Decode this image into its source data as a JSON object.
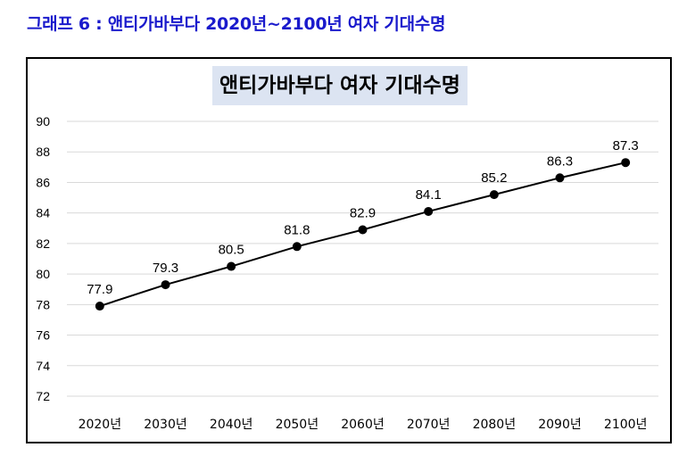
{
  "caption": "그래프 6 : 앤티가바부다 2020년~2100년 여자 기대수명",
  "chart_data": {
    "type": "line",
    "title": "앤티가바부다 여자 기대수명",
    "xlabel": "",
    "ylabel": "",
    "categories": [
      "2020년",
      "2030년",
      "2040년",
      "2050년",
      "2060년",
      "2070년",
      "2080년",
      "2090년",
      "2100년"
    ],
    "series": [
      {
        "values": [
          77.9,
          79.3,
          80.5,
          81.8,
          82.9,
          84.1,
          85.2,
          86.3,
          87.3
        ]
      }
    ],
    "ylim": [
      72,
      90
    ],
    "yticks": [
      72,
      74,
      76,
      78,
      80,
      82,
      84,
      86,
      88,
      90
    ],
    "grid": true,
    "legend": "none",
    "data_labels": true
  },
  "colors": {
    "caption": "#1a1acc",
    "title_bg": "#dce4f2",
    "line": "#000000",
    "grid": "#d9d9d9"
  }
}
